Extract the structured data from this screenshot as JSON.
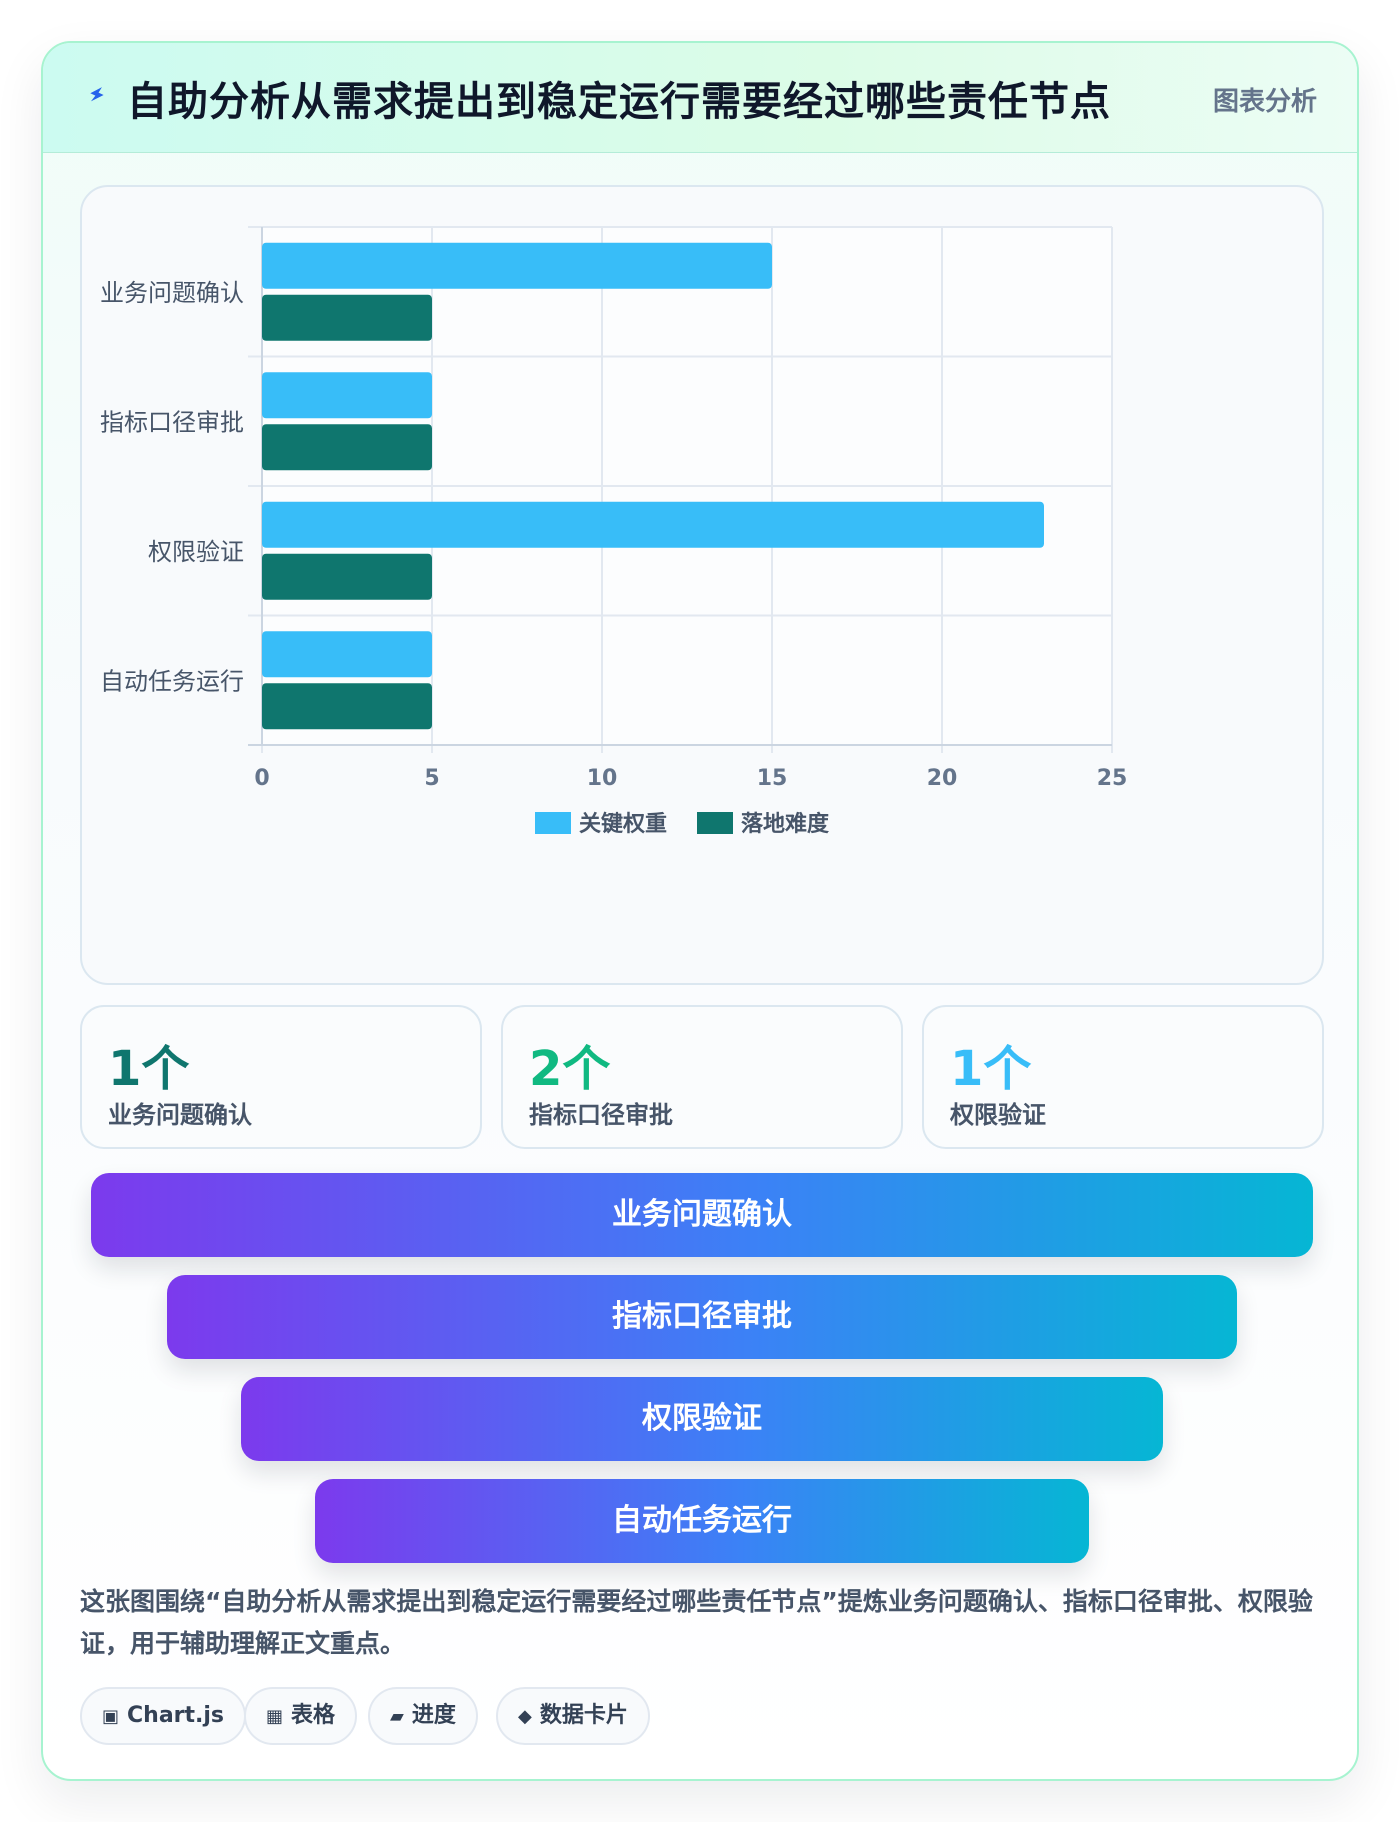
{
  "header": {
    "title": "自助分析从需求提出到稳定运行需要经过哪些责任节点",
    "tag": "图表分析",
    "icon": "lightning-icon"
  },
  "chart_data": {
    "type": "bar",
    "orientation": "horizontal",
    "categories": [
      "业务问题确认",
      "指标口径审批",
      "权限验证",
      "自动任务运行"
    ],
    "series": [
      {
        "name": "关键权重",
        "color": "#38bdf8",
        "values": [
          15,
          5,
          23,
          5
        ]
      },
      {
        "name": "落地难度",
        "color": "#0f766e",
        "values": [
          5,
          5,
          5,
          5
        ]
      }
    ],
    "xlim": [
      0,
      25
    ],
    "xticks": [
      "0",
      "5",
      "10",
      "15",
      "20",
      "25"
    ],
    "grid": true,
    "legend": "bottom"
  },
  "stats": [
    {
      "value": "1个",
      "label": "业务问题确认",
      "color": "#0f766e"
    },
    {
      "value": "2个",
      "label": "指标口径审批",
      "color": "#10b981"
    },
    {
      "value": "1个",
      "label": "权限验证",
      "color": "#38bdf8"
    }
  ],
  "funnel": [
    "业务问题确认",
    "指标口径审批",
    "权限验证",
    "自动任务运行"
  ],
  "summary": "这张图围绕“自助分析从需求提出到稳定运行需要经过哪些责任节点”提炼业务问题确认、指标口径审批、权限验证，用于辅助理解正文重点。",
  "tags": [
    {
      "icon": "▣",
      "label": "Chart.js"
    },
    {
      "icon": "▦",
      "label": "表格"
    },
    {
      "icon": "▰",
      "label": "进度"
    },
    {
      "icon": "◆",
      "label": "数据卡片"
    }
  ]
}
